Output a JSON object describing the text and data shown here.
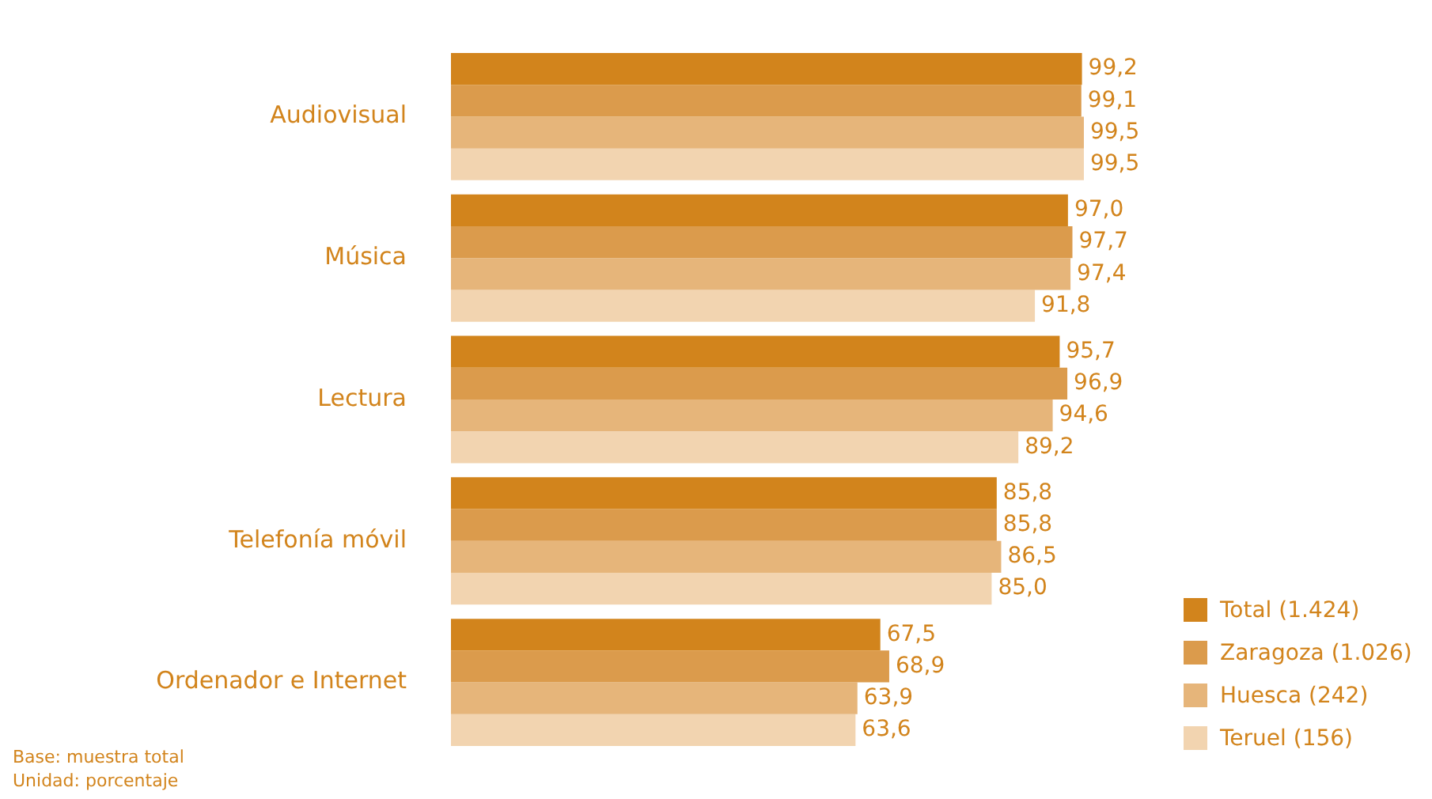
{
  "chart_data": {
    "type": "bar",
    "orientation": "horizontal",
    "categories": [
      "Audiovisual",
      "Música",
      "Lectura",
      "Telefonía móvil",
      "Ordenador e Internet"
    ],
    "series": [
      {
        "name": "Total (1.424)",
        "color": "#d2841c",
        "values": [
          99.2,
          97.0,
          95.7,
          85.8,
          67.5
        ],
        "value_labels": [
          "99,2",
          "97,0",
          "95,7",
          "85,8",
          "67,5"
        ]
      },
      {
        "name": "Zaragoza (1.026)",
        "color": "#db9b4c",
        "values": [
          99.1,
          97.7,
          96.9,
          85.8,
          68.9
        ],
        "value_labels": [
          "99,1",
          "97,7",
          "96,9",
          "85,8",
          "68,9"
        ]
      },
      {
        "name": "Huesca (242)",
        "color": "#e6b57a",
        "values": [
          99.5,
          97.4,
          94.6,
          86.5,
          63.9
        ],
        "value_labels": [
          "99,5",
          "97,4",
          "94,6",
          "86,5",
          "63,9"
        ]
      },
      {
        "name": "Teruel (156)",
        "color": "#f2d4b0",
        "values": [
          99.5,
          91.8,
          89.2,
          85.0,
          63.6
        ],
        "value_labels": [
          "99,5",
          "91,8",
          "89,2",
          "85,0",
          "63,6"
        ]
      }
    ],
    "legend": "bottom right",
    "annotations": [
      "Base: muestra total",
      "Unidad: porcentaje"
    ]
  }
}
